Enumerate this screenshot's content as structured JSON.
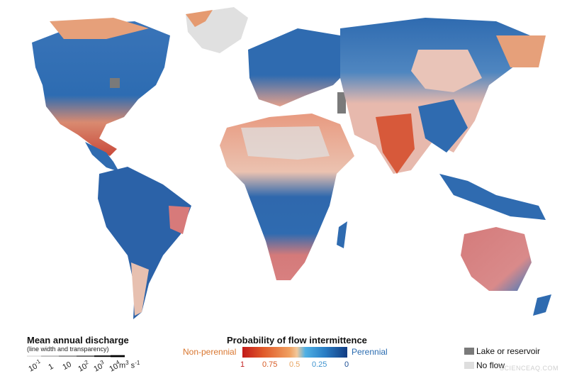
{
  "discharge_legend": {
    "title": "Mean annual discharge",
    "subtitle": "(line width and transparency)",
    "ticks": [
      "10-1",
      "1",
      "10",
      "102",
      "103",
      "104"
    ],
    "unit": "m3 s-1"
  },
  "intermittence_legend": {
    "title": "Probability of flow intermittence",
    "left_label": "Non-perennial",
    "right_label": "Perennial",
    "values": [
      "1",
      "0.75",
      "0.5",
      "0.25",
      "0"
    ],
    "colors": {
      "non_perennial": "#d9762f",
      "perennial": "#2a6bb0",
      "v1": "#c22222",
      "v075": "#d75b25",
      "v05": "#e8a460",
      "v025": "#3e93cf",
      "v0": "#1b4e94"
    }
  },
  "other_legend": {
    "lake_label": "Lake or reservoir",
    "noflow_label": "No flow",
    "lake_color": "#7a7a7a",
    "noflow_color": "#dedede"
  },
  "watermark": "SCIENCEAQ.COM"
}
